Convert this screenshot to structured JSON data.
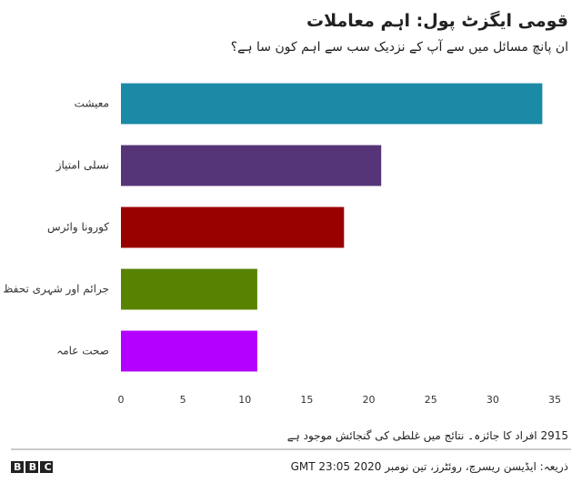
{
  "chart_data": {
    "type": "bar",
    "orientation": "horizontal",
    "title": "قومی ایگزٹ پول: اہم معاملات",
    "subtitle": "ان پانچ مسائل میں سے آپ کے نزدیک سب سے اہم کون سا ہے؟",
    "categories": [
      "معیشت",
      "نسلی امتیاز",
      "کورونا وائرس",
      "جرائم اور شہری تحفظ",
      "صحت عامہ"
    ],
    "values": [
      34,
      21,
      18,
      11,
      11
    ],
    "colors": [
      "#1b8aa6",
      "#553578",
      "#990000",
      "#588300",
      "#b300ff"
    ],
    "xlim": [
      0,
      35
    ],
    "xticks": [
      0,
      5,
      10,
      15,
      20,
      25,
      30,
      35
    ],
    "grid": false,
    "note": "2915 افراد کا جائزہ۔ نتائج میں غلطی کی گنجائش موجود ہے",
    "source": "ذریعہ: ایڈیسن ریسرچ، روئٹرز، تین نومبر 2020 GMT 23:05",
    "logo": "BBC"
  }
}
